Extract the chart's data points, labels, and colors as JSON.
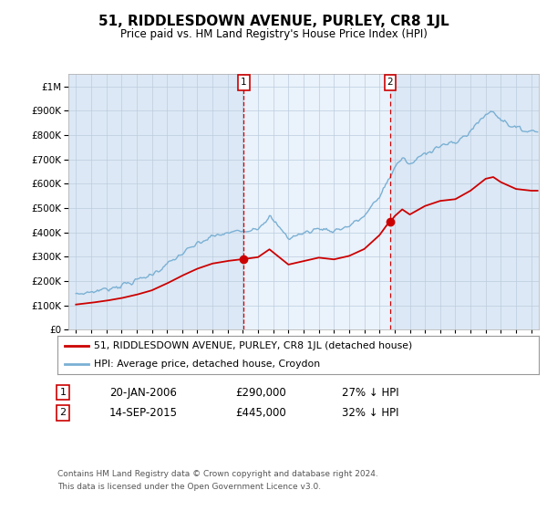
{
  "title": "51, RIDDLESDOWN AVENUE, PURLEY, CR8 1JL",
  "subtitle": "Price paid vs. HM Land Registry's House Price Index (HPI)",
  "hpi_label": "HPI: Average price, detached house, Croydon",
  "property_label": "51, RIDDLESDOWN AVENUE, PURLEY, CR8 1JL (detached house)",
  "footer1": "Contains HM Land Registry data © Crown copyright and database right 2024.",
  "footer2": "This data is licensed under the Open Government Licence v3.0.",
  "sale1_date": "20-JAN-2006",
  "sale1_price": 290000,
  "sale1_hpi_pct": "27% ↓ HPI",
  "sale1_year": 2006.05,
  "sale2_date": "14-SEP-2015",
  "sale2_price": 445000,
  "sale2_hpi_pct": "32% ↓ HPI",
  "sale2_year": 2015.71,
  "background_color": "#dce8f5",
  "highlight_color": "#eaf2fb",
  "plot_bg": "#dce8f5",
  "red_color": "#cc0000",
  "blue_color": "#7ab0d4",
  "grid_color": "#bbccdd",
  "ylim": [
    0,
    1050000
  ],
  "xlim_start": 1994.5,
  "xlim_end": 2025.5
}
